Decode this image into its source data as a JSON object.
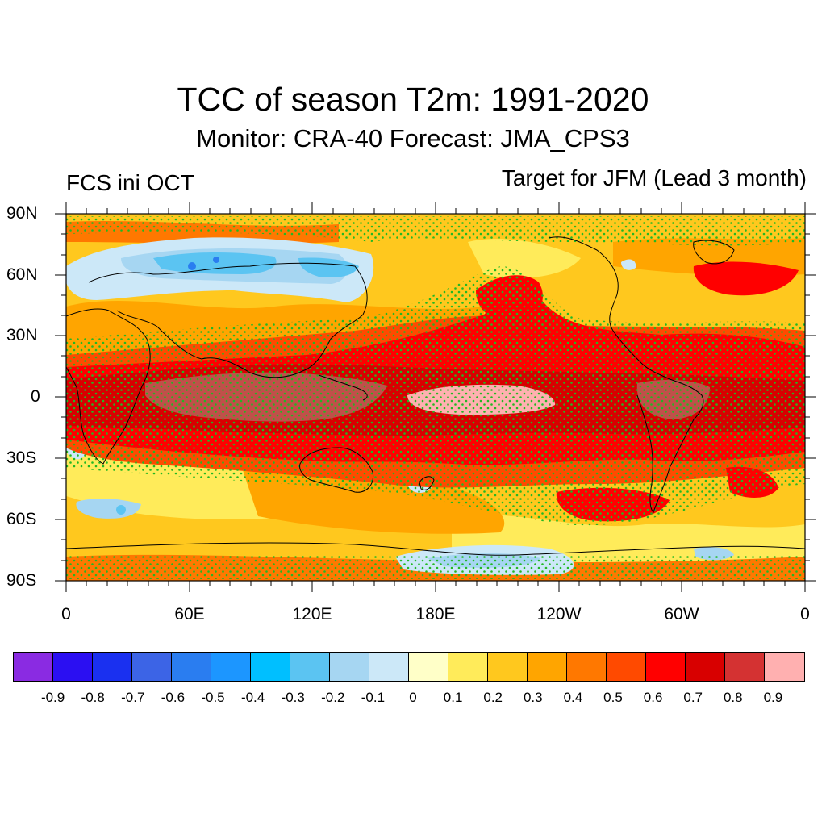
{
  "title": "TCC of season T2m: 1991-2020",
  "subtitle": "Monitor: CRA-40   Forecast: JMA_CPS3",
  "left_label": "FCS ini OCT",
  "right_label": "Target for JFM (Lead 3 month)",
  "lat_labels": [
    "90N",
    "60N",
    "30N",
    "0",
    "30S",
    "60S",
    "90S"
  ],
  "lon_labels": [
    "0",
    "60E",
    "120E",
    "180E",
    "120W",
    "60W",
    "0"
  ],
  "colorbar": {
    "colors": [
      "#8a2be2",
      "#2b0ff2",
      "#1a30f0",
      "#3c64e6",
      "#2a7df0",
      "#1c96ff",
      "#00bfff",
      "#5bc4f2",
      "#a6d6f2",
      "#cce8f8",
      "#ffffc8",
      "#ffeb5a",
      "#ffc81e",
      "#ffa500",
      "#ff7800",
      "#ff4a00",
      "#ff0000",
      "#d80000",
      "#d43232",
      "#ffb0b0"
    ],
    "labels": [
      "-0.9",
      "-0.8",
      "-0.7",
      "-0.6",
      "-0.5",
      "-0.4",
      "-0.3",
      "-0.2",
      "-0.1",
      "0",
      "0.1",
      "0.2",
      "0.3",
      "0.4",
      "0.5",
      "0.6",
      "0.7",
      "0.8",
      "0.9"
    ]
  },
  "map_colors": {
    "base": "#ffc81e",
    "light_yellow": "#ffeb5a",
    "orange": "#ffa500",
    "dark_orange": "#ff7800",
    "red_orange": "#ff4a00",
    "red": "#ff0000",
    "dark_red": "#d80000",
    "brown_red": "#c0504a",
    "pink": "#ffb0b0",
    "light_blue": "#cce8f8",
    "mid_blue": "#a6d6f2",
    "blue": "#5bc4f2",
    "sky": "#2a7df0",
    "stipple": "#22b822"
  }
}
